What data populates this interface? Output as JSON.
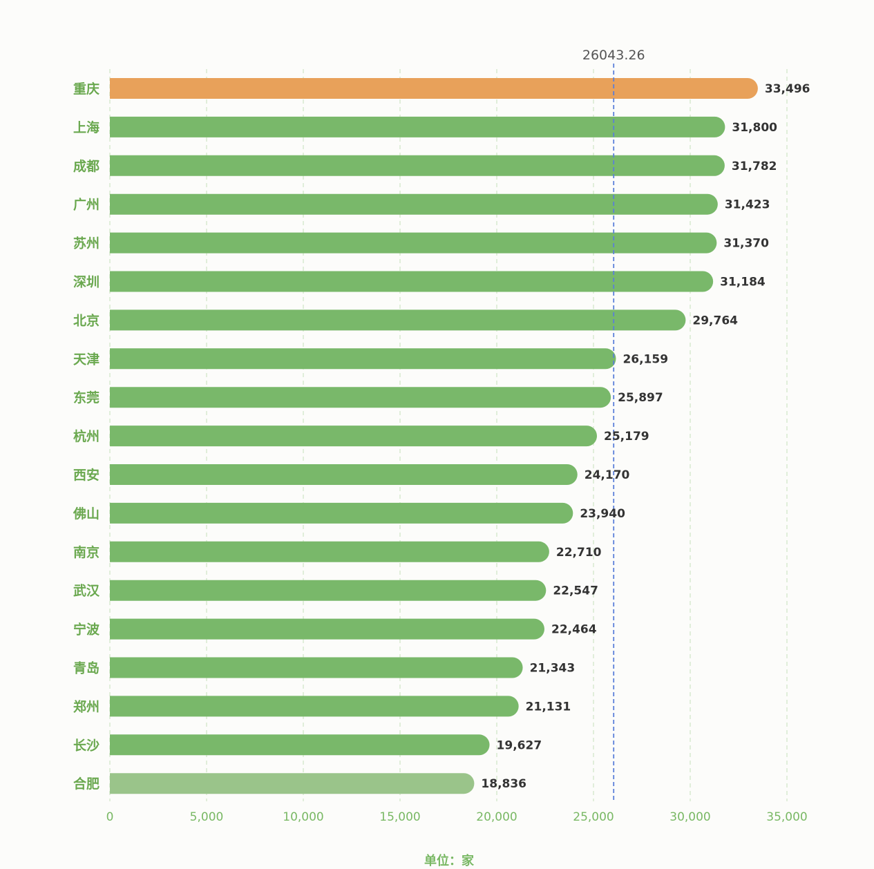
{
  "chart_data": {
    "type": "bar",
    "orientation": "horizontal",
    "categories": [
      "重庆",
      "上海",
      "成都",
      "广州",
      "苏州",
      "深圳",
      "北京",
      "天津",
      "东莞",
      "杭州",
      "西安",
      "佛山",
      "南京",
      "武汉",
      "宁波",
      "青岛",
      "郑州",
      "长沙",
      "合肥"
    ],
    "values": [
      33496,
      31800,
      31782,
      31423,
      31370,
      31184,
      29764,
      26159,
      25897,
      25179,
      24170,
      23940,
      22710,
      22547,
      22464,
      21343,
      21131,
      19627,
      18836
    ],
    "value_labels": [
      "33,496",
      "31,800",
      "31,782",
      "31,423",
      "31,370",
      "31,184",
      "29,764",
      "26,159",
      "25,897",
      "25,179",
      "24,170",
      "23,940",
      "22,710",
      "22,547",
      "22,464",
      "21,343",
      "21,131",
      "19,627",
      "18,836"
    ],
    "xlim": [
      0,
      35000
    ],
    "x_ticks": [
      0,
      5000,
      10000,
      15000,
      20000,
      25000,
      30000,
      35000
    ],
    "x_tick_labels": [
      "0",
      "5,000",
      "10,000",
      "15,000",
      "20,000",
      "25,000",
      "30,000",
      "35,000"
    ],
    "xlabel": "单位：家",
    "ylabel": "",
    "title": "",
    "reference_line": {
      "value": 26043.26,
      "label": "26043.26"
    },
    "grid": "vertical-dashed",
    "colors": {
      "highlight": "#e8a15a",
      "bar": "#79b86a",
      "last_bar": "#9ac48a",
      "category_text": "#6aa84f",
      "tick_text": "#79b864",
      "gridline": "#cfe6c4",
      "reference_line": "#5b7fd9"
    }
  }
}
